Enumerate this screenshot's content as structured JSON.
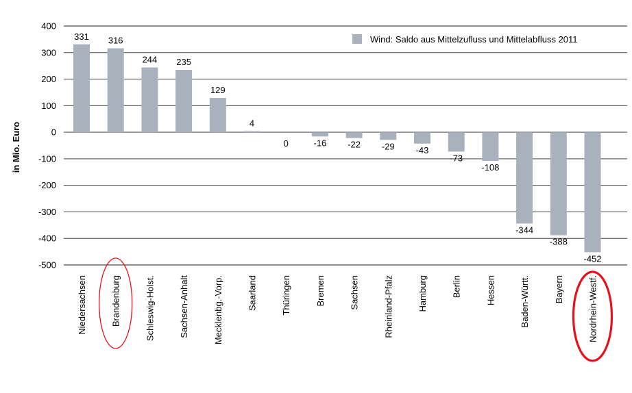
{
  "chart_data": {
    "type": "bar",
    "ylabel": "in Mio. Euro",
    "xlabel": "",
    "ylim": [
      -500,
      400
    ],
    "yticks": [
      "400",
      "300",
      "200",
      "100",
      "0",
      "-100",
      "-200",
      "-300",
      "-400",
      "-500"
    ],
    "grid": true,
    "legend_position": "top-right",
    "categories": [
      "Niedersachsen",
      "Brandenburg",
      "Schleswig-Holst.",
      "Sachsen-Anhalt",
      "Mecklenbg.-Vorp.",
      "Saarland",
      "Thüringen",
      "Bremen",
      "Sachsen",
      "Rheinland-Pfalz",
      "Hamburg",
      "Berlin",
      "Hessen",
      "Baden-Württ.",
      "Bayern",
      "Nordrhein-Westf."
    ],
    "series": [
      {
        "name": "Wind: Saldo aus Mittelzufluss und Mittelabfluss 2011",
        "values": [
          331,
          316,
          244,
          235,
          129,
          4,
          0,
          -16,
          -22,
          -29,
          -43,
          -73,
          -108,
          -344,
          -388,
          -452
        ],
        "labels": [
          "331",
          "316",
          "244",
          "235",
          "129",
          "4",
          "0",
          "-16",
          "-22",
          "-29",
          "-43",
          "-73",
          "-108",
          "-344",
          "-388",
          "-452"
        ]
      }
    ],
    "bar_color": "#a9b1bd",
    "annotation_color": "#e8101c",
    "highlighted": [
      "Brandenburg",
      "Nordrhein-Westf."
    ]
  }
}
